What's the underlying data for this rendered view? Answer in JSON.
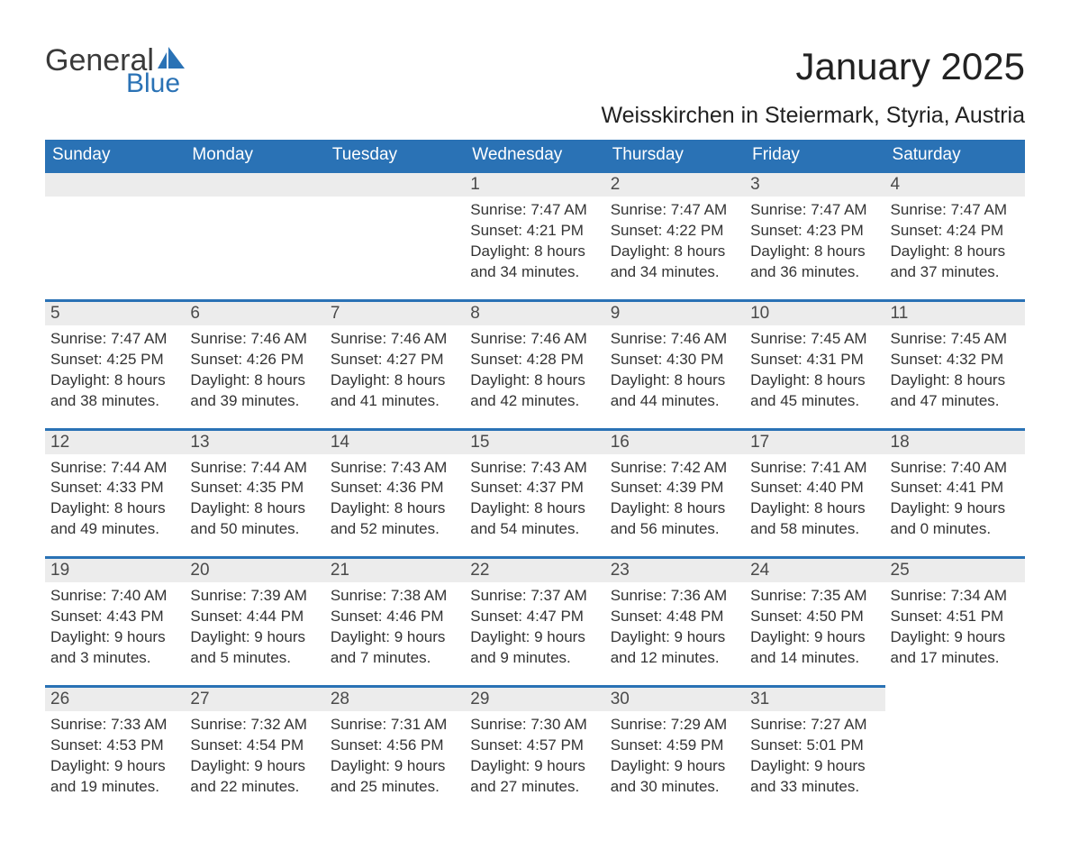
{
  "brand": {
    "line1": "General",
    "line2": "Blue",
    "text_color": "#3a3a3a",
    "accent_color": "#2a72b5"
  },
  "title": {
    "month": "January 2025",
    "location": "Weisskirchen in Steiermark, Styria, Austria"
  },
  "colors": {
    "header_bg": "#2a72b5",
    "header_text": "#ffffff",
    "daynum_bg": "#ececec",
    "daynum_border": "#2a72b5",
    "body_text": "#333333",
    "page_bg": "#ffffff"
  },
  "weekdays": [
    "Sunday",
    "Monday",
    "Tuesday",
    "Wednesday",
    "Thursday",
    "Friday",
    "Saturday"
  ],
  "weeks": [
    [
      null,
      null,
      null,
      {
        "day": "1",
        "sunrise": "Sunrise: 7:47 AM",
        "sunset": "Sunset: 4:21 PM",
        "daylight1": "Daylight: 8 hours",
        "daylight2": "and 34 minutes."
      },
      {
        "day": "2",
        "sunrise": "Sunrise: 7:47 AM",
        "sunset": "Sunset: 4:22 PM",
        "daylight1": "Daylight: 8 hours",
        "daylight2": "and 34 minutes."
      },
      {
        "day": "3",
        "sunrise": "Sunrise: 7:47 AM",
        "sunset": "Sunset: 4:23 PM",
        "daylight1": "Daylight: 8 hours",
        "daylight2": "and 36 minutes."
      },
      {
        "day": "4",
        "sunrise": "Sunrise: 7:47 AM",
        "sunset": "Sunset: 4:24 PM",
        "daylight1": "Daylight: 8 hours",
        "daylight2": "and 37 minutes."
      }
    ],
    [
      {
        "day": "5",
        "sunrise": "Sunrise: 7:47 AM",
        "sunset": "Sunset: 4:25 PM",
        "daylight1": "Daylight: 8 hours",
        "daylight2": "and 38 minutes."
      },
      {
        "day": "6",
        "sunrise": "Sunrise: 7:46 AM",
        "sunset": "Sunset: 4:26 PM",
        "daylight1": "Daylight: 8 hours",
        "daylight2": "and 39 minutes."
      },
      {
        "day": "7",
        "sunrise": "Sunrise: 7:46 AM",
        "sunset": "Sunset: 4:27 PM",
        "daylight1": "Daylight: 8 hours",
        "daylight2": "and 41 minutes."
      },
      {
        "day": "8",
        "sunrise": "Sunrise: 7:46 AM",
        "sunset": "Sunset: 4:28 PM",
        "daylight1": "Daylight: 8 hours",
        "daylight2": "and 42 minutes."
      },
      {
        "day": "9",
        "sunrise": "Sunrise: 7:46 AM",
        "sunset": "Sunset: 4:30 PM",
        "daylight1": "Daylight: 8 hours",
        "daylight2": "and 44 minutes."
      },
      {
        "day": "10",
        "sunrise": "Sunrise: 7:45 AM",
        "sunset": "Sunset: 4:31 PM",
        "daylight1": "Daylight: 8 hours",
        "daylight2": "and 45 minutes."
      },
      {
        "day": "11",
        "sunrise": "Sunrise: 7:45 AM",
        "sunset": "Sunset: 4:32 PM",
        "daylight1": "Daylight: 8 hours",
        "daylight2": "and 47 minutes."
      }
    ],
    [
      {
        "day": "12",
        "sunrise": "Sunrise: 7:44 AM",
        "sunset": "Sunset: 4:33 PM",
        "daylight1": "Daylight: 8 hours",
        "daylight2": "and 49 minutes."
      },
      {
        "day": "13",
        "sunrise": "Sunrise: 7:44 AM",
        "sunset": "Sunset: 4:35 PM",
        "daylight1": "Daylight: 8 hours",
        "daylight2": "and 50 minutes."
      },
      {
        "day": "14",
        "sunrise": "Sunrise: 7:43 AM",
        "sunset": "Sunset: 4:36 PM",
        "daylight1": "Daylight: 8 hours",
        "daylight2": "and 52 minutes."
      },
      {
        "day": "15",
        "sunrise": "Sunrise: 7:43 AM",
        "sunset": "Sunset: 4:37 PM",
        "daylight1": "Daylight: 8 hours",
        "daylight2": "and 54 minutes."
      },
      {
        "day": "16",
        "sunrise": "Sunrise: 7:42 AM",
        "sunset": "Sunset: 4:39 PM",
        "daylight1": "Daylight: 8 hours",
        "daylight2": "and 56 minutes."
      },
      {
        "day": "17",
        "sunrise": "Sunrise: 7:41 AM",
        "sunset": "Sunset: 4:40 PM",
        "daylight1": "Daylight: 8 hours",
        "daylight2": "and 58 minutes."
      },
      {
        "day": "18",
        "sunrise": "Sunrise: 7:40 AM",
        "sunset": "Sunset: 4:41 PM",
        "daylight1": "Daylight: 9 hours",
        "daylight2": "and 0 minutes."
      }
    ],
    [
      {
        "day": "19",
        "sunrise": "Sunrise: 7:40 AM",
        "sunset": "Sunset: 4:43 PM",
        "daylight1": "Daylight: 9 hours",
        "daylight2": "and 3 minutes."
      },
      {
        "day": "20",
        "sunrise": "Sunrise: 7:39 AM",
        "sunset": "Sunset: 4:44 PM",
        "daylight1": "Daylight: 9 hours",
        "daylight2": "and 5 minutes."
      },
      {
        "day": "21",
        "sunrise": "Sunrise: 7:38 AM",
        "sunset": "Sunset: 4:46 PM",
        "daylight1": "Daylight: 9 hours",
        "daylight2": "and 7 minutes."
      },
      {
        "day": "22",
        "sunrise": "Sunrise: 7:37 AM",
        "sunset": "Sunset: 4:47 PM",
        "daylight1": "Daylight: 9 hours",
        "daylight2": "and 9 minutes."
      },
      {
        "day": "23",
        "sunrise": "Sunrise: 7:36 AM",
        "sunset": "Sunset: 4:48 PM",
        "daylight1": "Daylight: 9 hours",
        "daylight2": "and 12 minutes."
      },
      {
        "day": "24",
        "sunrise": "Sunrise: 7:35 AM",
        "sunset": "Sunset: 4:50 PM",
        "daylight1": "Daylight: 9 hours",
        "daylight2": "and 14 minutes."
      },
      {
        "day": "25",
        "sunrise": "Sunrise: 7:34 AM",
        "sunset": "Sunset: 4:51 PM",
        "daylight1": "Daylight: 9 hours",
        "daylight2": "and 17 minutes."
      }
    ],
    [
      {
        "day": "26",
        "sunrise": "Sunrise: 7:33 AM",
        "sunset": "Sunset: 4:53 PM",
        "daylight1": "Daylight: 9 hours",
        "daylight2": "and 19 minutes."
      },
      {
        "day": "27",
        "sunrise": "Sunrise: 7:32 AM",
        "sunset": "Sunset: 4:54 PM",
        "daylight1": "Daylight: 9 hours",
        "daylight2": "and 22 minutes."
      },
      {
        "day": "28",
        "sunrise": "Sunrise: 7:31 AM",
        "sunset": "Sunset: 4:56 PM",
        "daylight1": "Daylight: 9 hours",
        "daylight2": "and 25 minutes."
      },
      {
        "day": "29",
        "sunrise": "Sunrise: 7:30 AM",
        "sunset": "Sunset: 4:57 PM",
        "daylight1": "Daylight: 9 hours",
        "daylight2": "and 27 minutes."
      },
      {
        "day": "30",
        "sunrise": "Sunrise: 7:29 AM",
        "sunset": "Sunset: 4:59 PM",
        "daylight1": "Daylight: 9 hours",
        "daylight2": "and 30 minutes."
      },
      {
        "day": "31",
        "sunrise": "Sunrise: 7:27 AM",
        "sunset": "Sunset: 5:01 PM",
        "daylight1": "Daylight: 9 hours",
        "daylight2": "and 33 minutes."
      },
      null
    ]
  ]
}
